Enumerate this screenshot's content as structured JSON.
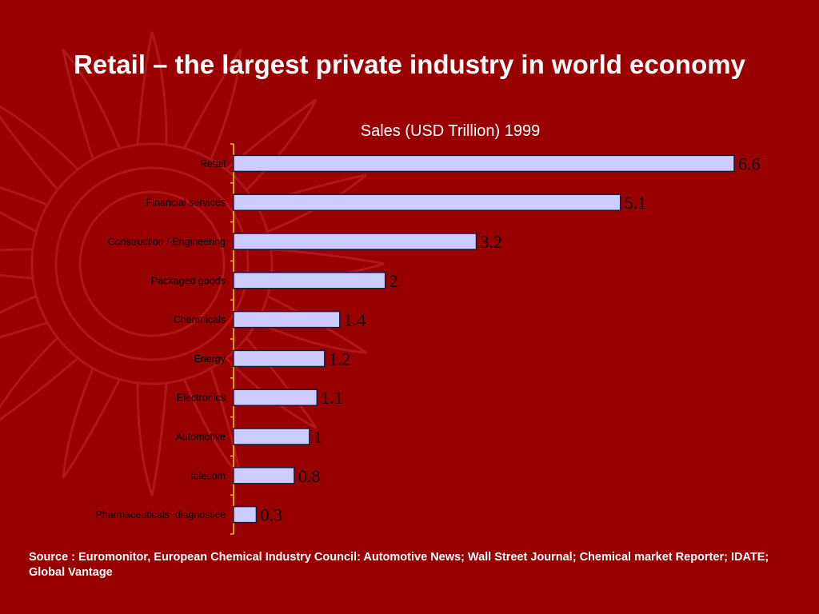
{
  "slide": {
    "title": "Retail – the largest private industry in world economy",
    "source": "Source : Euromonitor, European Chemical Industry Council: Automotive News; Wall Street Journal; Chemical market Reporter; IDATE; Global Vantage"
  },
  "colors": {
    "background": "#990000",
    "bar_fill": "#ccccff",
    "bar_stroke": "#1a1a3a",
    "axis": "#ffcc00",
    "text": "#ffffff",
    "label_text": "#000000"
  },
  "chart_data": {
    "type": "bar",
    "orientation": "horizontal",
    "title": "Sales (USD Trillion) 1999",
    "categories": [
      "Retail",
      "Financial services",
      "Construction / Engineering",
      "Packaged goods",
      "Chenmicals",
      "Energy",
      "Electronics",
      "Automotive",
      "telecom",
      "Pharmaceuticals; diagnostice"
    ],
    "values": [
      6.6,
      5.1,
      3.2,
      2,
      1.4,
      1.2,
      1.1,
      1,
      0.8,
      0.3
    ],
    "value_labels": [
      "6.6",
      "5.1",
      "3.2",
      "2",
      "1.4",
      "1.2",
      "1.1",
      "1",
      "0.8",
      "0.3"
    ],
    "xlim": [
      0,
      6.6
    ],
    "grid": false,
    "legend": "none"
  }
}
